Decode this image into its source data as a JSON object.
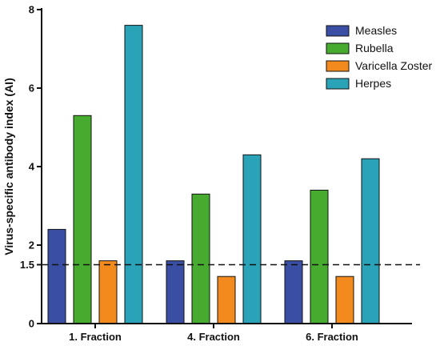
{
  "chart_data": {
    "type": "bar",
    "categories": [
      "1. Fraction",
      "4. Fraction",
      "6. Fraction"
    ],
    "series": [
      {
        "name": "Measles",
        "color": "#3a4ea3",
        "values": [
          2.4,
          1.6,
          1.6
        ]
      },
      {
        "name": "Rubella",
        "color": "#46ab2f",
        "values": [
          5.3,
          3.3,
          3.4
        ]
      },
      {
        "name": "Varicella Zoster",
        "color": "#f28a1e",
        "values": [
          1.6,
          1.2,
          1.2
        ]
      },
      {
        "name": "Herpes",
        "color": "#2aa3b8",
        "values": [
          7.6,
          4.3,
          4.2
        ]
      }
    ],
    "title": "",
    "xlabel": "",
    "ylabel": "Virus-specific antibody index (AI)",
    "ylim": [
      0,
      8
    ],
    "yticks": [
      {
        "value": 0,
        "label": "0"
      },
      {
        "value": 1.5,
        "label": "1.5"
      },
      {
        "value": 2,
        "label": "2"
      },
      {
        "value": 4,
        "label": "4"
      },
      {
        "value": 6,
        "label": "6"
      },
      {
        "value": 8,
        "label": "8"
      }
    ],
    "reference_line": {
      "value": 1.5,
      "style": "dashed"
    },
    "grid": false,
    "legend": "top-right"
  }
}
